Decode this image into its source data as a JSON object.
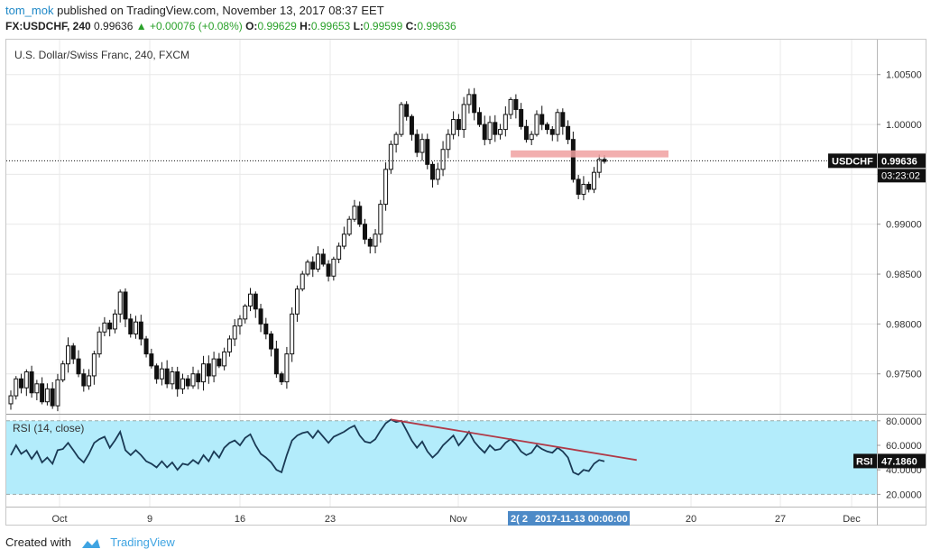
{
  "header": {
    "user": "tom_mok",
    "published": "published on TradingView.com, November 13, 2017 08:37 EET",
    "symbol": "FX:USDCHF, 240",
    "last": "0.99636",
    "change": "+0.00076 (+0.08%)",
    "o_label": "O:",
    "o": "0.99629",
    "h_label": "H:",
    "h": "0.99653",
    "l_label": "L:",
    "l": "0.99599",
    "c_label": "C:",
    "c": "0.99636"
  },
  "chart_data": [
    {
      "type": "candlestick",
      "title": "U.S. Dollar/Swiss Franc, 240, FXCM",
      "ylim": [
        0.971,
        1.0085
      ],
      "y_ticks": [
        "1.00500",
        "1.00000",
        "0.99500",
        "0.99000",
        "0.98500",
        "0.98000",
        "0.97500"
      ],
      "x_ticks": [
        "Oct",
        "9",
        "16",
        "23",
        "Nov",
        "20",
        "27",
        "Dec"
      ],
      "last_price_label": "USDCHF",
      "last_price": "0.99636",
      "countdown": "03:23:02",
      "crosshair_date": "2017-11-13 00:00:00",
      "crosshair_partial": "2( 2",
      "resistance_zone": [
        0.9967,
        0.9974
      ],
      "closes": [
        0.9728,
        0.9745,
        0.9736,
        0.9752,
        0.9731,
        0.974,
        0.9722,
        0.9735,
        0.9718,
        0.9744,
        0.976,
        0.9778,
        0.9765,
        0.975,
        0.9738,
        0.9748,
        0.977,
        0.9792,
        0.9801,
        0.9795,
        0.981,
        0.9832,
        0.9805,
        0.979,
        0.9802,
        0.9785,
        0.977,
        0.9758,
        0.9745,
        0.9755,
        0.974,
        0.9752,
        0.9735,
        0.9745,
        0.9738,
        0.975,
        0.9742,
        0.976,
        0.9748,
        0.9765,
        0.9758,
        0.9772,
        0.9785,
        0.9798,
        0.9805,
        0.9818,
        0.983,
        0.9815,
        0.98,
        0.979,
        0.9775,
        0.975,
        0.9742,
        0.977,
        0.981,
        0.9835,
        0.985,
        0.9862,
        0.9855,
        0.987,
        0.986,
        0.9848,
        0.9865,
        0.9878,
        0.989,
        0.9905,
        0.9918,
        0.99,
        0.9885,
        0.9878,
        0.989,
        0.992,
        0.9955,
        0.998,
        0.999,
        1.002,
        1.0008,
        0.999,
        0.9972,
        0.9985,
        0.996,
        0.9945,
        0.9955,
        0.9975,
        0.999,
        1.0005,
        0.9995,
        1.002,
        1.003,
        1.0012,
        1.0,
        0.9985,
        1.0002,
        0.999,
        0.9995,
        1.001,
        1.0025,
        1.0015,
        0.9998,
        0.9985,
        0.999,
        1.001,
        1.0,
        0.9995,
        0.999,
        1.0012,
        0.9998,
        0.9985,
        0.9945,
        0.993,
        0.994,
        0.9935,
        0.9952,
        0.9965,
        0.9963
      ],
      "rsi": {
        "label": "RSI (14, close)",
        "value_label": "RSI",
        "value": "47.1860",
        "y_ticks": [
          "80.0000",
          "60.0000",
          "40.0000",
          "20.0000"
        ],
        "ylim": [
          10,
          85
        ],
        "band": [
          20,
          80
        ],
        "values": [
          52,
          60,
          53,
          56,
          49,
          55,
          46,
          50,
          45,
          56,
          57,
          62,
          56,
          50,
          46,
          53,
          62,
          65,
          67,
          58,
          64,
          71,
          56,
          52,
          56,
          52,
          47,
          45,
          42,
          47,
          42,
          46,
          40,
          45,
          44,
          48,
          45,
          52,
          47,
          55,
          50,
          58,
          62,
          64,
          60,
          66,
          69,
          60,
          53,
          50,
          46,
          40,
          38,
          52,
          64,
          68,
          70,
          71,
          66,
          72,
          67,
          62,
          67,
          69,
          71,
          74,
          76,
          68,
          63,
          62,
          65,
          72,
          78,
          81,
          79,
          80,
          72,
          64,
          58,
          63,
          55,
          50,
          54,
          60,
          64,
          68,
          60,
          65,
          71,
          63,
          58,
          54,
          60,
          56,
          57,
          62,
          65,
          61,
          55,
          52,
          54,
          60,
          57,
          55,
          54,
          58,
          55,
          50,
          38,
          36,
          40,
          39,
          45,
          48,
          47
        ],
        "divergence_line": [
          [
            73,
            81
          ],
          [
            115,
            48
          ]
        ]
      }
    }
  ],
  "footer": {
    "created_with": "Created with",
    "brand": "TradingView"
  },
  "colors": {
    "candle": "#111111",
    "axis_text": "#333333",
    "grid": "#e8e8e8",
    "zone": "#f0a0a0",
    "rsi_band": "#b3ecfb",
    "rsi_line": "#1a3a55",
    "divergence": "#b03a48",
    "crosshair": "#4d8ac7",
    "positive": "#2aa12a",
    "brand": "#3fa4e2"
  }
}
